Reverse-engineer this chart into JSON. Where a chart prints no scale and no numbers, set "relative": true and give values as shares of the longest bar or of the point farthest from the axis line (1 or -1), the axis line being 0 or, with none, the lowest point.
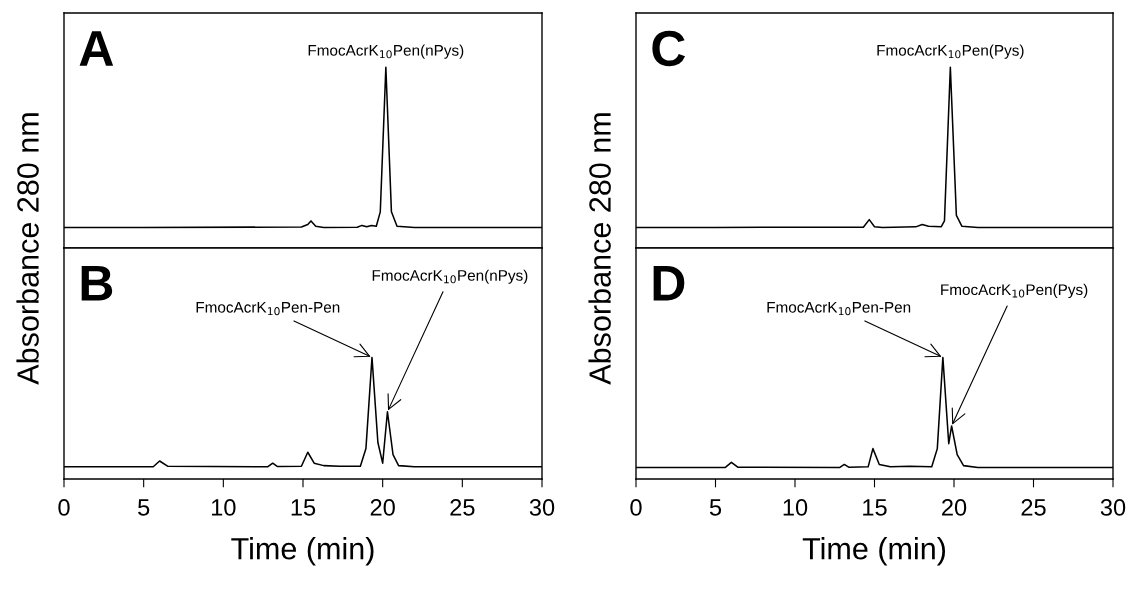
{
  "chart_data": [
    {
      "type": "line",
      "relative": true,
      "ylabel": "Absorbance 280 nm",
      "xlim": [
        0,
        30
      ],
      "xticks": [
        0,
        5,
        10,
        15,
        20,
        25,
        30
      ],
      "tick_labels": false,
      "line_style": "solid",
      "series": [
        {
          "color": "#000000",
          "x": [
            0,
            5,
            14.9,
            15.3,
            15.5,
            15.8,
            16.3,
            18.4,
            18.7,
            19.0,
            19.3,
            19.6,
            19.85,
            20.2,
            20.55,
            20.9,
            22,
            30
          ],
          "values": [
            0.114,
            0.114,
            0.116,
            0.13,
            0.15,
            0.12,
            0.114,
            0.115,
            0.125,
            0.117,
            0.125,
            0.12,
            0.2,
            1.0,
            0.2,
            0.12,
            0.114,
            0.114
          ]
        }
      ],
      "annotations": [
        "A",
        {
          "text": "FmocAcrK$_{10}$Pen(nPys)",
          "x": 20.2,
          "y": 1.0
        }
      ]
    },
    {
      "type": "line",
      "relative": true,
      "xlabel": "Time (min)",
      "xlim": [
        0,
        30
      ],
      "xticks": [
        0,
        5,
        10,
        15,
        20,
        25,
        30
      ],
      "tick_labels": "x",
      "line_style": "solid",
      "series": [
        {
          "color": "#000000",
          "x": [
            0,
            5.6,
            6.0,
            6.5,
            12.8,
            13.1,
            13.4,
            14.9,
            15.3,
            15.7,
            16.3,
            17.3,
            18.6,
            18.95,
            19.33,
            19.7,
            20.0,
            20.3,
            20.65,
            21.0,
            22,
            30
          ],
          "values": [
            0.101,
            0.101,
            0.148,
            0.105,
            0.101,
            0.13,
            0.102,
            0.105,
            0.22,
            0.13,
            0.11,
            0.105,
            0.105,
            0.25,
            1.0,
            0.3,
            0.13,
            0.553,
            0.2,
            0.11,
            0.101,
            0.101
          ]
        }
      ],
      "annotations": [
        "B",
        {
          "text": "FmocAcrK$_{10}$Pen-Pen",
          "x": 19.33,
          "y": 1.0
        },
        {
          "text": "FmocAcrK$_{10}$Pen(nPys)",
          "x": 20.3,
          "y": 0.553
        }
      ]
    },
    {
      "type": "line",
      "relative": true,
      "ylabel": "Absorbance 280 nm",
      "xlim": [
        0,
        30
      ],
      "xticks": [
        0,
        5,
        10,
        15,
        20,
        25,
        30
      ],
      "tick_labels": false,
      "line_style": "solid",
      "series": [
        {
          "color": "#000000",
          "x": [
            0,
            5,
            14.3,
            14.67,
            15.0,
            15.5,
            17.6,
            18.0,
            18.4,
            19.2,
            19.4,
            19.77,
            20.15,
            20.5,
            21.5,
            30
          ],
          "values": [
            0.114,
            0.114,
            0.115,
            0.157,
            0.118,
            0.114,
            0.117,
            0.13,
            0.12,
            0.118,
            0.15,
            1.0,
            0.18,
            0.12,
            0.114,
            0.114
          ]
        }
      ],
      "annotations": [
        "C",
        {
          "text": "FmocAcrK$_{10}$Pen(Pys)",
          "x": 19.77,
          "y": 1.0
        }
      ]
    },
    {
      "type": "line",
      "relative": true,
      "xlabel": "Time (min)",
      "xlim": [
        0,
        30
      ],
      "xticks": [
        0,
        5,
        10,
        15,
        20,
        25,
        30
      ],
      "tick_labels": "x",
      "line_style": "solid",
      "series": [
        {
          "color": "#000000",
          "x": [
            0,
            5.6,
            6.0,
            6.4,
            12.8,
            13.1,
            13.4,
            14.6,
            14.9,
            15.3,
            16.0,
            17.2,
            18.6,
            18.95,
            19.3,
            19.67,
            19.85,
            20.2,
            20.6,
            21.5,
            30
          ],
          "values": [
            0.094,
            0.094,
            0.137,
            0.097,
            0.094,
            0.12,
            0.096,
            0.1,
            0.25,
            0.12,
            0.1,
            0.105,
            0.1,
            0.25,
            1.0,
            0.29,
            0.436,
            0.2,
            0.11,
            0.094,
            0.094
          ]
        }
      ],
      "annotations": [
        "D",
        {
          "text": "FmocAcrK$_{10}$Pen-Pen",
          "x": 19.3,
          "y": 1.0
        },
        {
          "text": "FmocAcrK$_{10}$Pen(Pys)",
          "x": 19.85,
          "y": 0.436
        }
      ]
    }
  ]
}
